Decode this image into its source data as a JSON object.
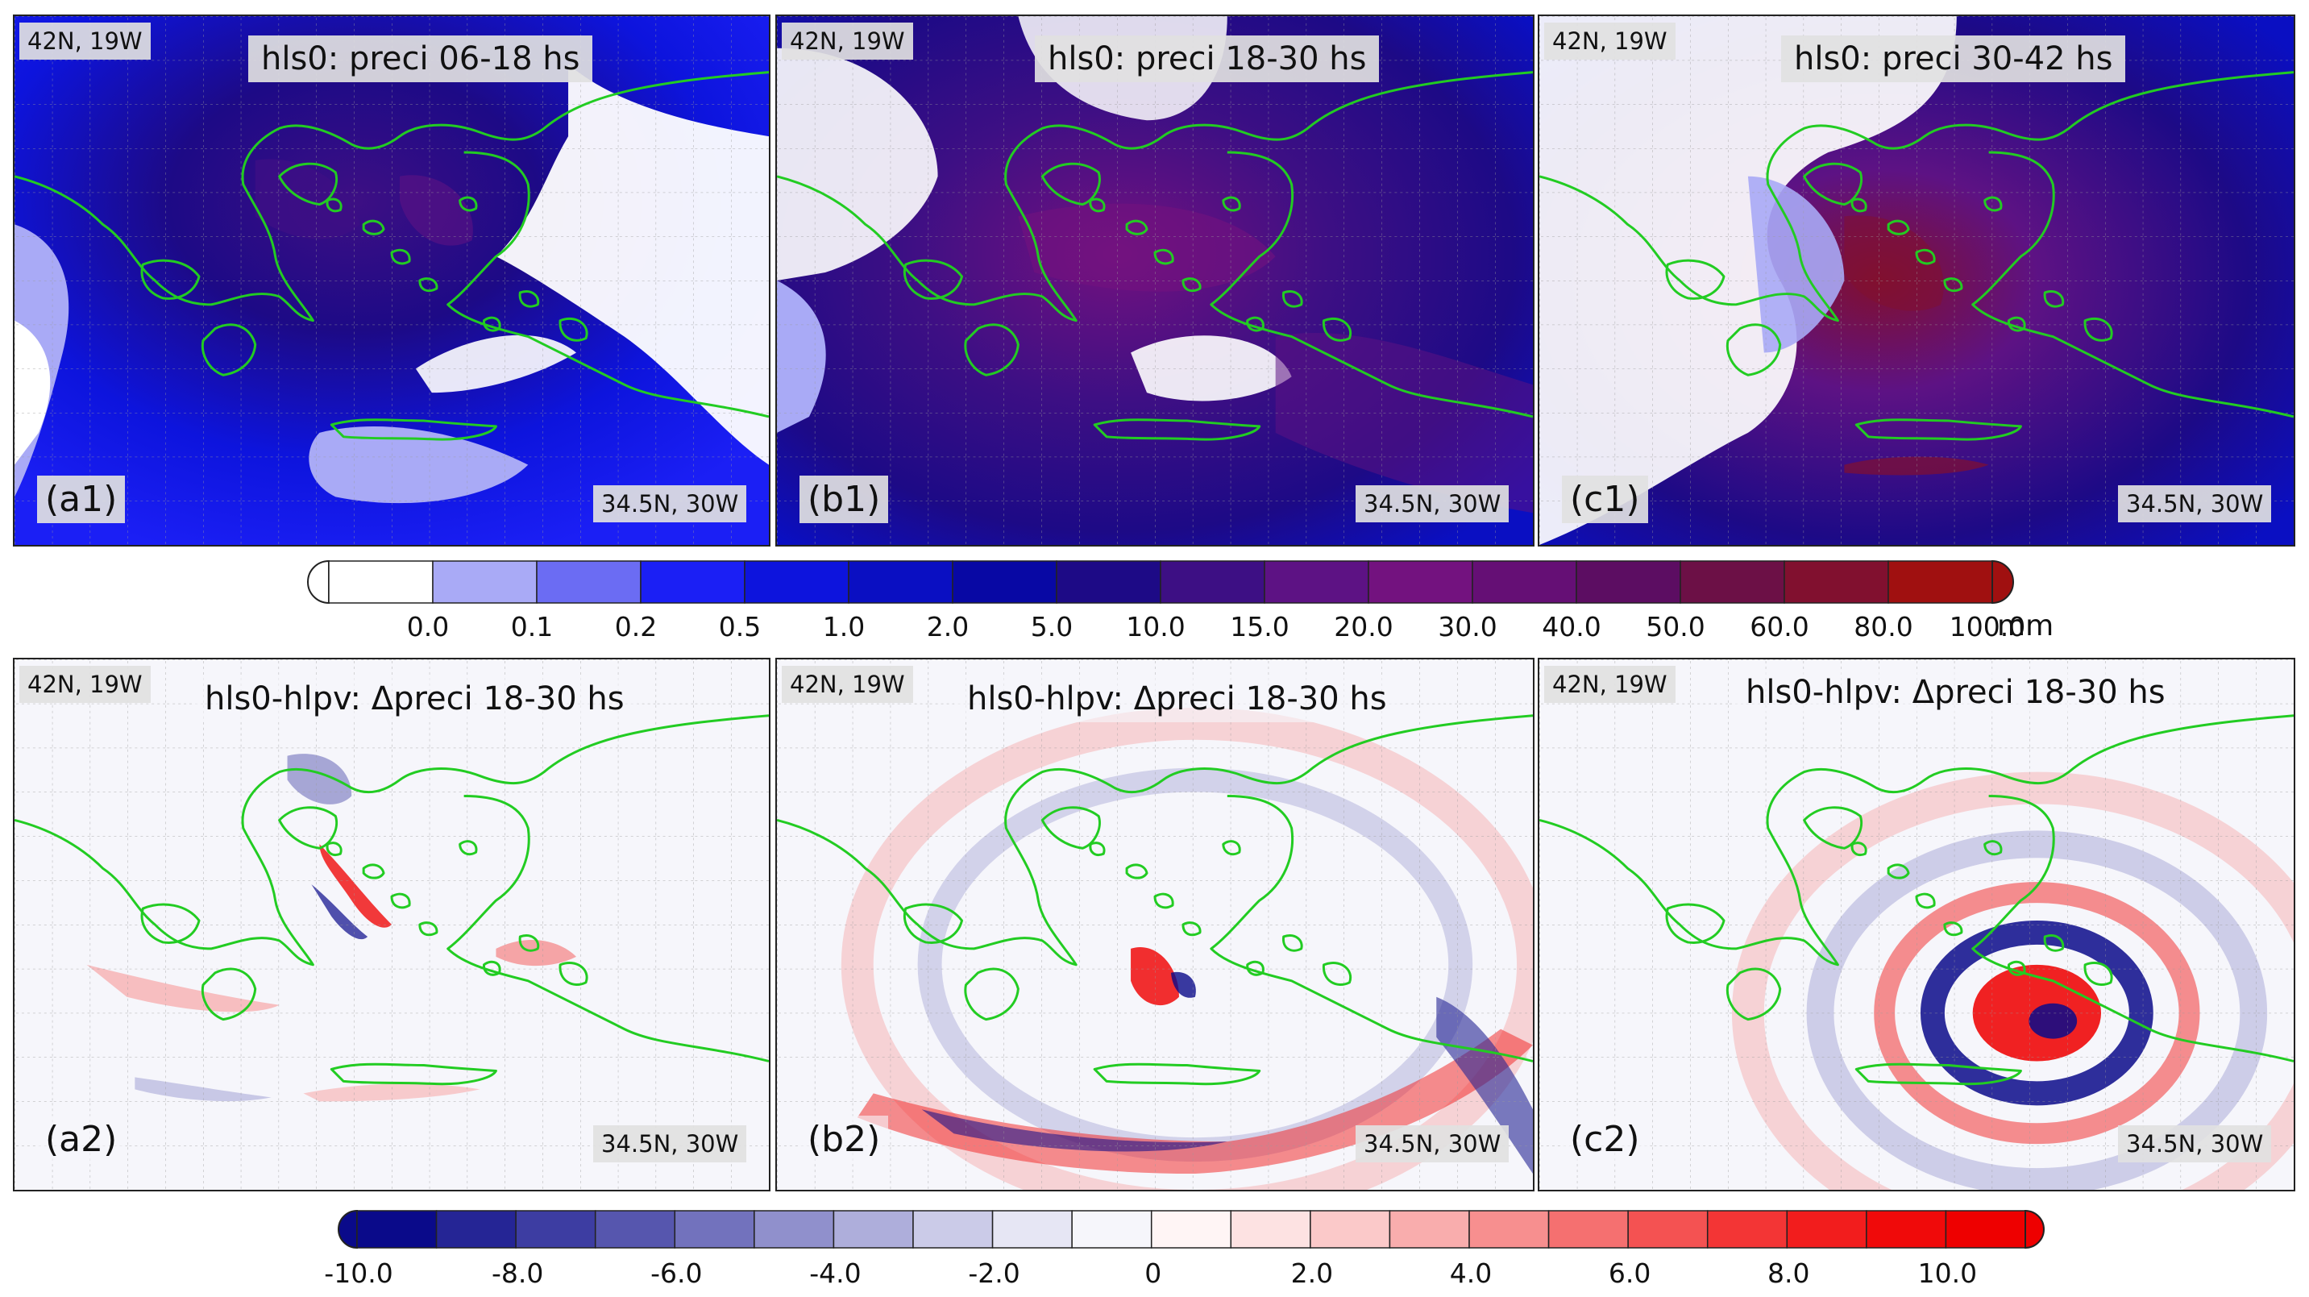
{
  "top_row": {
    "colorbar": {
      "levels": [
        "0.0",
        "0.1",
        "0.2",
        "0.5",
        "1.0",
        "2.0",
        "5.0",
        "10.0",
        "15.0",
        "20.0",
        "30.0",
        "40.0",
        "50.0",
        "60.0",
        "80.0",
        "100.0"
      ],
      "unit": "mm",
      "colors": [
        "#ffffff",
        "#a9aaf6",
        "#6b6cf3",
        "#1b1ff5",
        "#0d14dd",
        "#0a0fc2",
        "#0808a4",
        "#1d0a86",
        "#3d0f84",
        "#5d1284",
        "#73127f",
        "#650f75",
        "#5c0d62",
        "#6c1046",
        "#81102f",
        "#a01010"
      ]
    },
    "panels": [
      {
        "id": "(a1)",
        "title": "hls0: preci 06-18 hs",
        "corner_nw": "42N, 19W",
        "corner_se": "34.5N, 30W"
      },
      {
        "id": "(b1)",
        "title": "hls0: preci 18-30 hs",
        "corner_nw": "42N, 19W",
        "corner_se": "34.5N, 30W"
      },
      {
        "id": "(c1)",
        "title": "hls0: preci 30-42 hs",
        "corner_nw": "42N, 19W",
        "corner_se": "34.5N, 30W"
      }
    ]
  },
  "bottom_row": {
    "colorbar": {
      "levels": [
        "-10.0",
        "-8.0",
        "-6.0",
        "-4.0",
        "-2.0",
        "0",
        "2.0",
        "4.0",
        "6.0",
        "8.0",
        "10.0"
      ],
      "colors": [
        "#0a0a8a",
        "#252595",
        "#3d3da2",
        "#5656ae",
        "#7272bd",
        "#9090cc",
        "#aeaedb",
        "#cbcbe8",
        "#e6e6f4",
        "#f6f6fb",
        "#fff5f5",
        "#fde2e2",
        "#fbc9c9",
        "#f9adad",
        "#f78f8f",
        "#f57070",
        "#f45252",
        "#f33535",
        "#f21d1d",
        "#f00a0a",
        "#ee0000"
      ]
    },
    "panels": [
      {
        "id": "(a2)",
        "title": "hls0-hlpv: Δpreci 18-30 hs",
        "corner_nw": "42N, 19W",
        "corner_se": "34.5N, 30W"
      },
      {
        "id": "(b2)",
        "title": "hls0-hlpv: Δpreci 18-30 hs",
        "corner_nw": "42N, 19W",
        "corner_se": "34.5N, 30W"
      },
      {
        "id": "(c2)",
        "title": "hls0-hlpv: Δpreci 18-30 hs",
        "corner_nw": "42N, 19W",
        "corner_se": "34.5N, 30W"
      }
    ]
  },
  "style": {
    "coastline_color": "#22cc22",
    "gridline_color": "#9a9a9a"
  }
}
